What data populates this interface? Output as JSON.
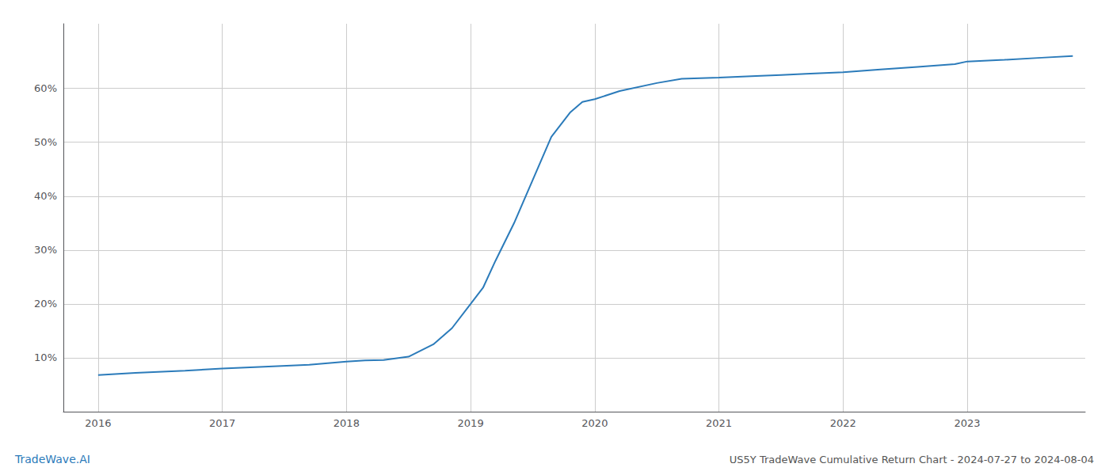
{
  "chart_data": {
    "type": "line",
    "title": "US5Y TradeWave Cumulative Return Chart - 2024-07-27 to 2024-08-04",
    "annotations": [
      {
        "text": "TradeWave.AI",
        "color": "#2b7bba"
      }
    ],
    "x": [
      2016.0,
      2016.3,
      2016.7,
      2017.0,
      2017.3,
      2017.7,
      2018.0,
      2018.15,
      2018.3,
      2018.5,
      2018.7,
      2018.85,
      2019.0,
      2019.1,
      2019.2,
      2019.35,
      2019.5,
      2019.65,
      2019.8,
      2019.9,
      2020.0,
      2020.2,
      2020.5,
      2020.7,
      2021.0,
      2021.3,
      2021.5,
      2021.7,
      2022.0,
      2022.3,
      2022.6,
      2022.9,
      2023.0,
      2023.3,
      2023.6,
      2023.85
    ],
    "values": [
      6.8,
      7.2,
      7.6,
      8.0,
      8.3,
      8.7,
      9.3,
      9.5,
      9.6,
      10.2,
      12.5,
      15.5,
      20.0,
      23.0,
      28.0,
      35.0,
      43.0,
      51.0,
      55.5,
      57.5,
      58.0,
      59.5,
      61.0,
      61.8,
      62.0,
      62.3,
      62.5,
      62.7,
      63.0,
      63.5,
      64.0,
      64.5,
      65.0,
      65.3,
      65.7,
      66.0
    ],
    "color": "#2b7bba",
    "xlim": [
      2015.72,
      2023.95
    ],
    "xticks": [
      2016,
      2017,
      2018,
      2019,
      2020,
      2021,
      2022,
      2023
    ],
    "ylim": [
      0,
      72
    ],
    "yticks": [
      {
        "value": 10,
        "label": "10%"
      },
      {
        "value": 20,
        "label": "20%"
      },
      {
        "value": 30,
        "label": "30%"
      },
      {
        "value": 40,
        "label": "40%"
      },
      {
        "value": 50,
        "label": "50%"
      },
      {
        "value": 60,
        "label": "60%"
      }
    ],
    "grid": true
  }
}
